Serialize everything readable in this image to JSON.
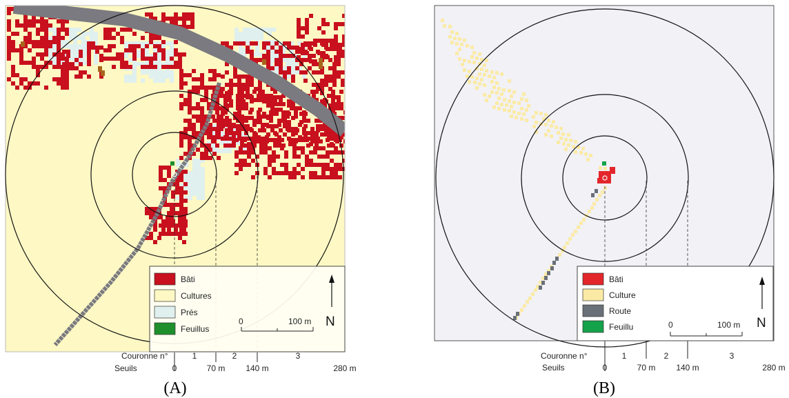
{
  "panels": [
    {
      "caption": "(A)",
      "legend": [
        {
          "label": "Bâti",
          "color": "#c8101e"
        },
        {
          "label": "Cultures",
          "color": "#fdf8c4"
        },
        {
          "label": "Prés",
          "color": "#dff0ee"
        },
        {
          "label": "Feuillus",
          "color": "#1e8f2a"
        }
      ],
      "scale": {
        "zero": "0",
        "max": "100 m"
      },
      "north": "N",
      "axis": {
        "couronne_title": "Couronne n°",
        "seuils_title": "Seuils",
        "couronnes": [
          "1",
          "2",
          "3"
        ],
        "seuils": [
          "0",
          "70 m",
          "140 m",
          "280 m"
        ]
      }
    },
    {
      "caption": "(B)",
      "legend": [
        {
          "label": "Bâti",
          "color": "#e3262a"
        },
        {
          "label": "Culture",
          "color": "#fbeaa6"
        },
        {
          "label": "Route",
          "color": "#6a7078"
        },
        {
          "label": "Feuillu",
          "color": "#14a24a"
        }
      ],
      "scale": {
        "zero": "0",
        "max": "100 m"
      },
      "north": "N",
      "axis": {
        "couronne_title": "Couronne n°",
        "seuils_title": "Seuils",
        "couronnes": [
          "1",
          "2",
          "3"
        ],
        "seuils": [
          "0",
          "70 m",
          "140 m",
          "280 m"
        ]
      }
    }
  ],
  "colors": {
    "cultures_bg": "#fdf8c4",
    "bati": "#c8101e",
    "route": "#7a7a80",
    "pres": "#dff0ee",
    "feuillus": "#1e8f2a",
    "brown": "#a8661c",
    "panel_b_bg": "#f1f1f6"
  }
}
